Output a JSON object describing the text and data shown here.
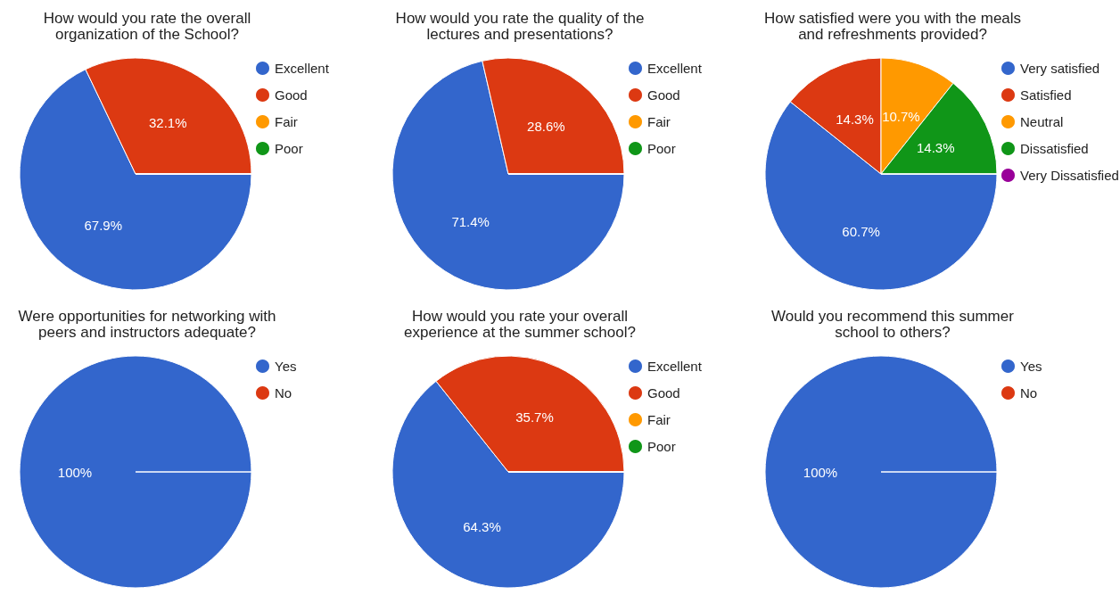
{
  "chart_data": [
    {
      "type": "pie",
      "title": "How would you rate the overall organization of the School?",
      "categories": [
        "Excellent",
        "Good",
        "Fair",
        "Poor"
      ],
      "values": [
        67.9,
        32.1,
        0,
        0
      ],
      "value_labels": [
        "67.9%",
        "32.1%",
        null,
        null
      ],
      "colors": [
        "#3366cc",
        "#dc3912",
        "#ff9900",
        "#109618"
      ],
      "legend": "right"
    },
    {
      "type": "pie",
      "title": "How would you rate the quality of the lectures and presentations?",
      "categories": [
        "Excellent",
        "Good",
        "Fair",
        "Poor"
      ],
      "values": [
        71.4,
        28.6,
        0,
        0
      ],
      "value_labels": [
        "71.4%",
        "28.6%",
        null,
        null
      ],
      "colors": [
        "#3366cc",
        "#dc3912",
        "#ff9900",
        "#109618"
      ],
      "legend": "right"
    },
    {
      "type": "pie",
      "title": "How satisfied were you with the meals and refreshments provided?",
      "categories": [
        "Very satisfied",
        "Satisfied",
        "Neutral",
        "Dissatisfied",
        "Very Dissatisfied"
      ],
      "values": [
        60.7,
        14.3,
        10.7,
        14.3,
        0
      ],
      "value_labels": [
        "60.7%",
        "14.3%",
        "10.7%",
        "14.3%",
        null
      ],
      "colors": [
        "#3366cc",
        "#dc3912",
        "#ff9900",
        "#109618",
        "#990099"
      ],
      "legend": "right"
    },
    {
      "type": "pie",
      "title": "Were opportunities for networking with peers and instructors adequate?",
      "categories": [
        "Yes",
        "No"
      ],
      "values": [
        100,
        0
      ],
      "value_labels": [
        "100%",
        null
      ],
      "colors": [
        "#3366cc",
        "#dc3912"
      ],
      "legend": "right"
    },
    {
      "type": "pie",
      "title": "How would you rate your overall experience at the summer school?",
      "categories": [
        "Excellent",
        "Good",
        "Fair",
        "Poor"
      ],
      "values": [
        64.3,
        35.7,
        0,
        0
      ],
      "value_labels": [
        "64.3%",
        "35.7%",
        null,
        null
      ],
      "colors": [
        "#3366cc",
        "#dc3912",
        "#ff9900",
        "#109618"
      ],
      "legend": "right"
    },
    {
      "type": "pie",
      "title": "Would you recommend this summer school to others?",
      "categories": [
        "Yes",
        "No"
      ],
      "values": [
        100,
        0
      ],
      "value_labels": [
        "100%",
        null
      ],
      "colors": [
        "#3366cc",
        "#dc3912"
      ],
      "legend": "right"
    }
  ]
}
